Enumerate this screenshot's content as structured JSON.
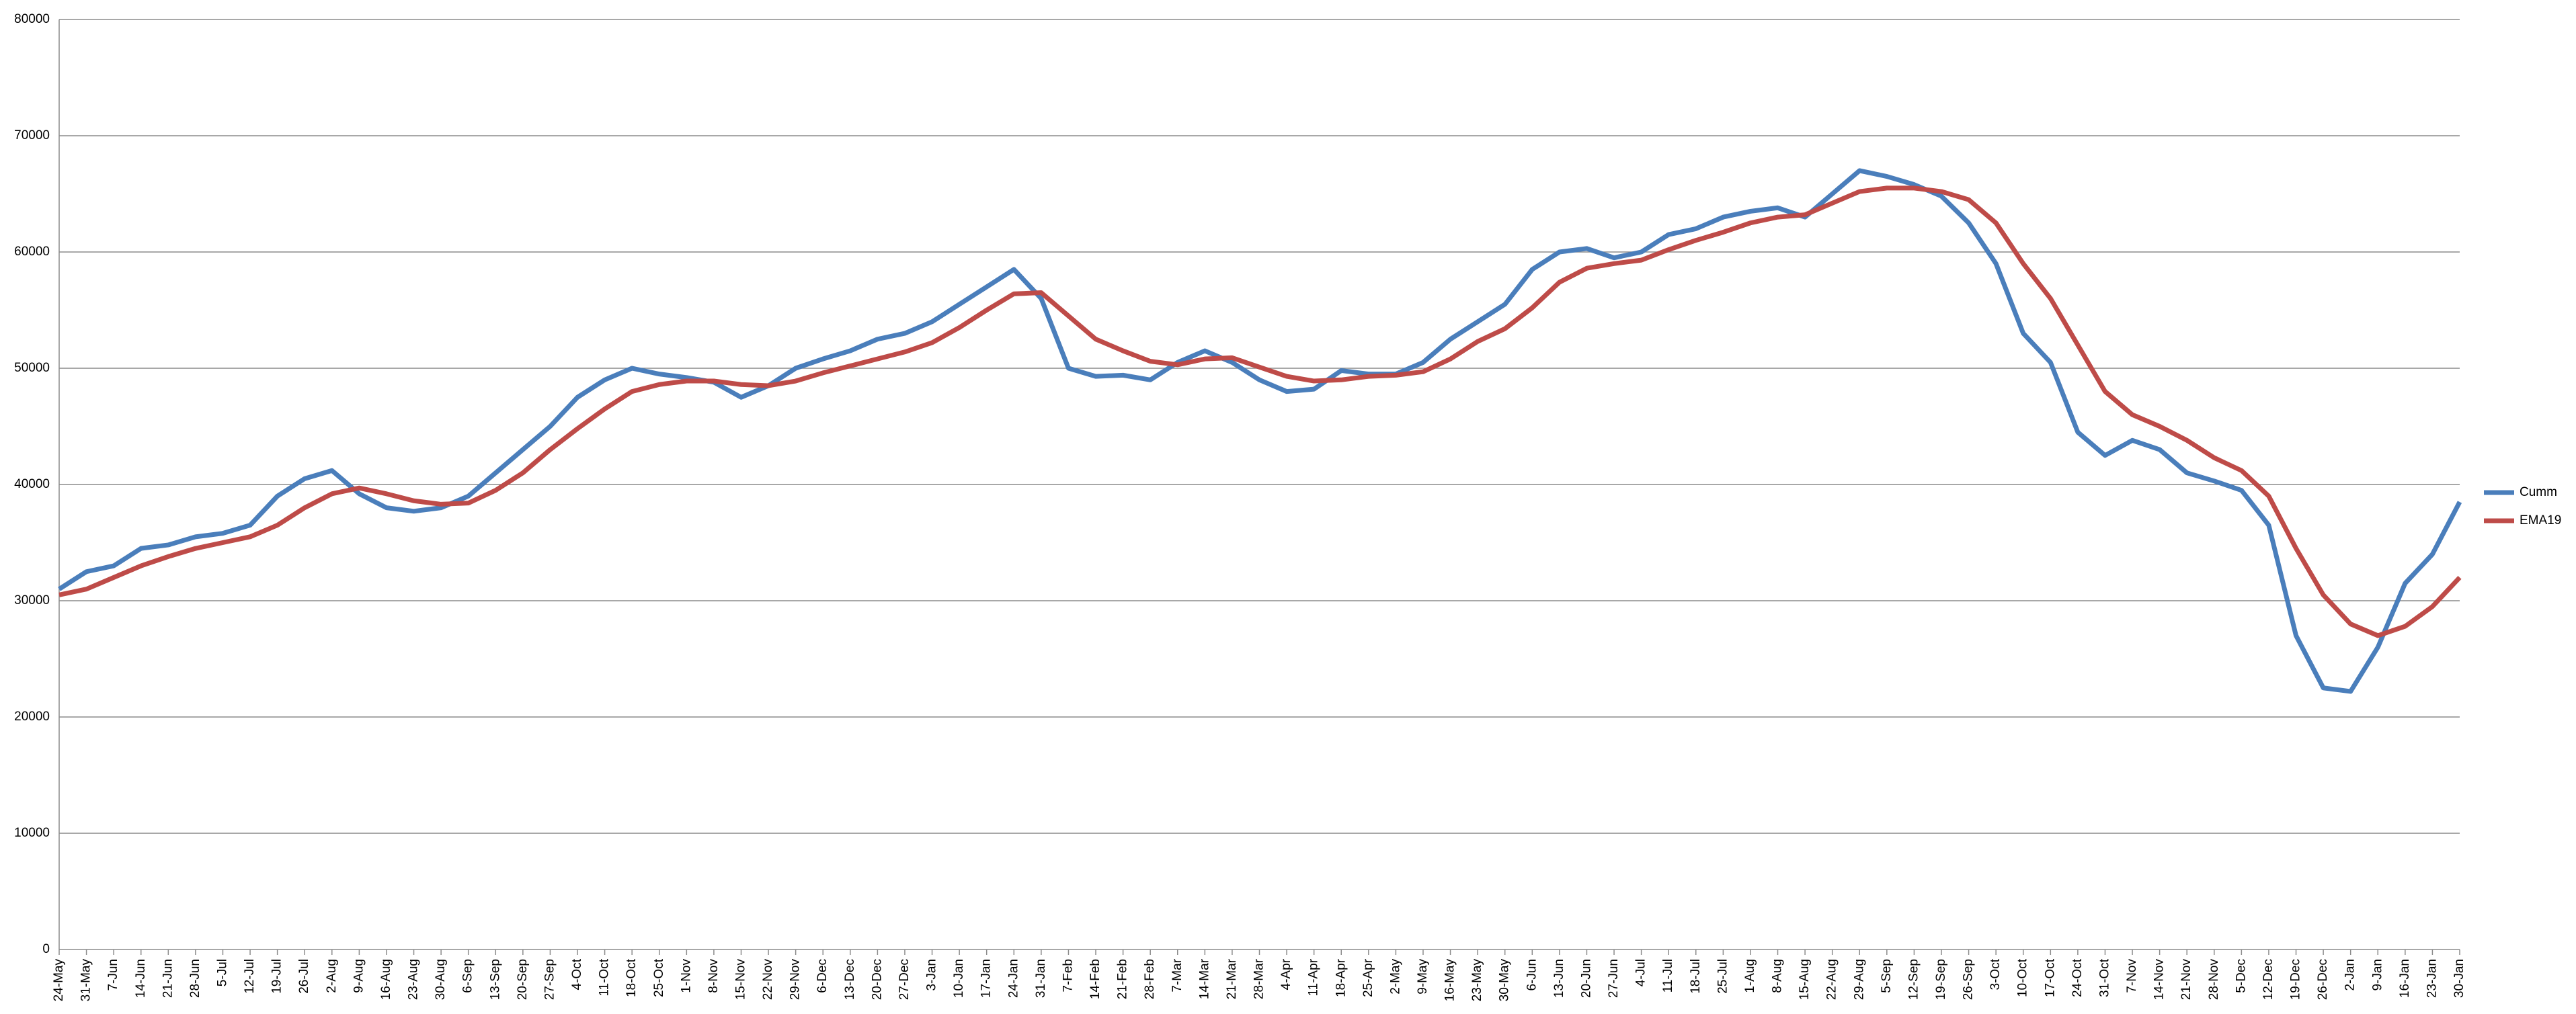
{
  "chart_data": {
    "type": "line",
    "categories": [
      "24-May",
      "31-May",
      "7-Jun",
      "14-Jun",
      "21-Jun",
      "28-Jun",
      "5-Jul",
      "12-Jul",
      "19-Jul",
      "26-Jul",
      "2-Aug",
      "9-Aug",
      "16-Aug",
      "23-Aug",
      "30-Aug",
      "6-Sep",
      "13-Sep",
      "20-Sep",
      "27-Sep",
      "4-Oct",
      "11-Oct",
      "18-Oct",
      "25-Oct",
      "1-Nov",
      "8-Nov",
      "15-Nov",
      "22-Nov",
      "29-Nov",
      "6-Dec",
      "13-Dec",
      "20-Dec",
      "27-Dec",
      "3-Jan",
      "10-Jan",
      "17-Jan",
      "24-Jan",
      "31-Jan",
      "7-Feb",
      "14-Feb",
      "21-Feb",
      "28-Feb",
      "7-Mar",
      "14-Mar",
      "21-Mar",
      "28-Mar",
      "4-Apr",
      "11-Apr",
      "18-Apr",
      "25-Apr",
      "2-May",
      "9-May",
      "16-May",
      "23-May",
      "30-May",
      "6-Jun",
      "13-Jun",
      "20-Jun",
      "27-Jun",
      "4-Jul",
      "11-Jul",
      "18-Jul",
      "25-Jul",
      "1-Aug",
      "8-Aug",
      "15-Aug",
      "22-Aug",
      "29-Aug",
      "5-Sep",
      "12-Sep",
      "19-Sep",
      "26-Sep",
      "3-Oct",
      "10-Oct",
      "17-Oct",
      "24-Oct",
      "31-Oct",
      "7-Nov",
      "14-Nov",
      "21-Nov",
      "28-Nov",
      "5-Dec",
      "12-Dec",
      "19-Dec",
      "26-Dec",
      "2-Jan",
      "9-Jan",
      "16-Jan",
      "23-Jan",
      "30-Jan"
    ],
    "series": [
      {
        "name": "Cumm",
        "color": "#4a7ebb",
        "values": [
          31000,
          32500,
          33000,
          34500,
          34800,
          35500,
          35800,
          36500,
          39000,
          40500,
          41200,
          39200,
          38000,
          37700,
          38000,
          39000,
          41000,
          43000,
          45000,
          47500,
          49000,
          50000,
          49500,
          49200,
          48800,
          47500,
          48500,
          50000,
          50800,
          51500,
          52500,
          53000,
          54000,
          55500,
          57000,
          58500,
          56000,
          50000,
          49300,
          49400,
          49000,
          50500,
          51500,
          50500,
          49000,
          48000,
          48200,
          49800,
          49500,
          49500,
          50500,
          52500,
          54000,
          55500,
          58500,
          60000,
          60300,
          59500,
          60000,
          61500,
          62000,
          63000,
          63500,
          63800,
          63000,
          65000,
          67000,
          66500,
          65800,
          64800,
          62500,
          59000,
          53000,
          50500,
          44500,
          42500,
          43800,
          43000,
          41000,
          40300,
          39500,
          36500,
          27000,
          22500,
          22200,
          26000,
          31500,
          34000,
          38500
        ]
      },
      {
        "name": "EMA19",
        "color": "#be4b48",
        "values": [
          30500,
          31000,
          32000,
          33000,
          33800,
          34500,
          35000,
          35500,
          36500,
          38000,
          39200,
          39700,
          39200,
          38600,
          38300,
          38400,
          39500,
          41000,
          43000,
          44800,
          46500,
          48000,
          48600,
          48900,
          48900,
          48600,
          48500,
          48900,
          49600,
          50200,
          50800,
          51400,
          52200,
          53500,
          55000,
          56400,
          56500,
          54500,
          52500,
          51500,
          50600,
          50300,
          50800,
          50900,
          50100,
          49300,
          48900,
          49000,
          49300,
          49400,
          49700,
          50800,
          52300,
          53400,
          55200,
          57400,
          58600,
          59000,
          59300,
          60200,
          61000,
          61700,
          62500,
          63000,
          63200,
          64200,
          65200,
          65500,
          65500,
          65200,
          64500,
          62500,
          59000,
          56000,
          52000,
          48000,
          46000,
          45000,
          43800,
          42300,
          41200,
          39000,
          34500,
          30500,
          28000,
          27000,
          27800,
          29500,
          32000
        ]
      }
    ],
    "ylim": [
      0,
      80000
    ],
    "yticks": [
      0,
      10000,
      20000,
      30000,
      40000,
      50000,
      60000,
      70000,
      80000
    ],
    "grid": true,
    "legend": "right"
  }
}
